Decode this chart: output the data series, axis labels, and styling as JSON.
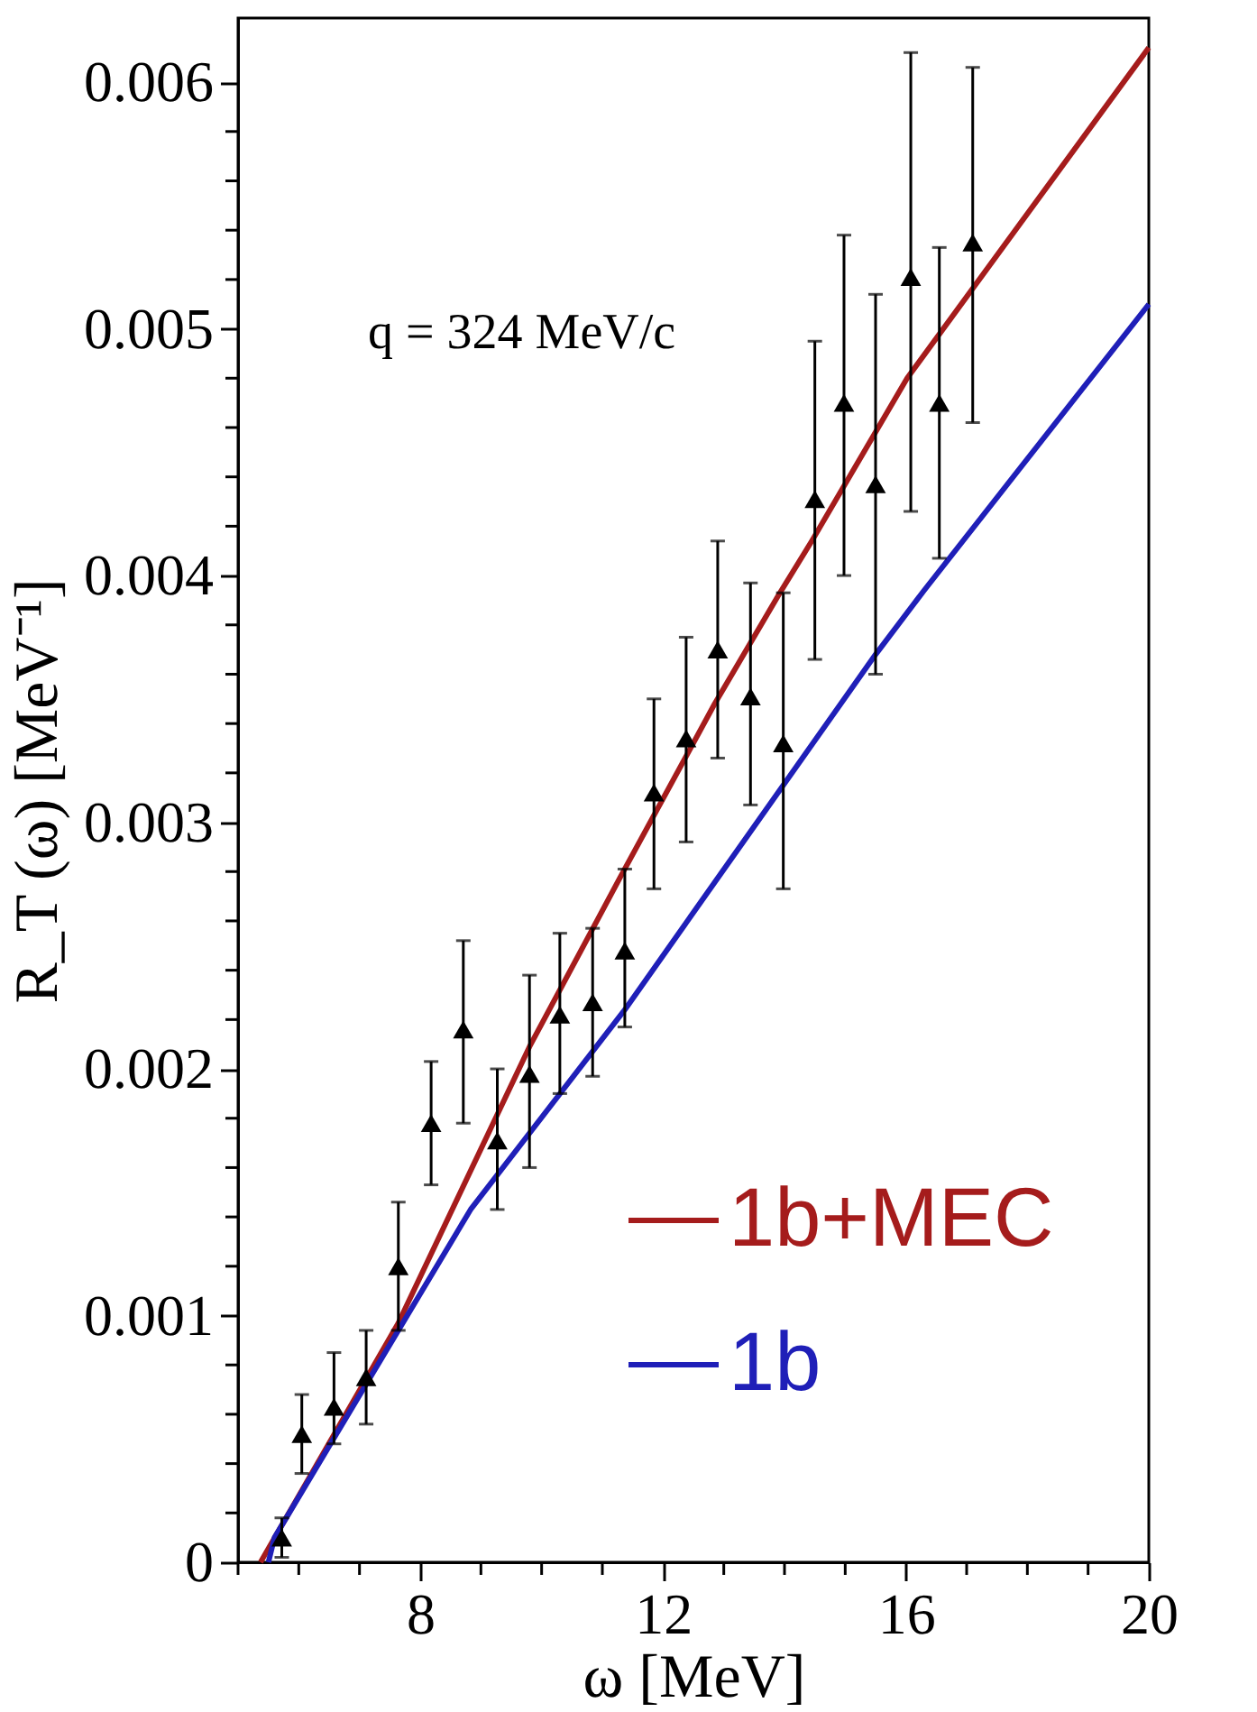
{
  "chart_data": {
    "type": "scatter",
    "xlabel": "ω  [MeV]",
    "ylabel": "R_T (ω) [MeV⁻¹]",
    "annotations": [
      "q = 324 MeV/c"
    ],
    "xlim": [
      5,
      20
    ],
    "ylim": [
      0,
      0.00626
    ],
    "xticks": [
      {
        "value": 5,
        "label": null
      },
      {
        "value": 6,
        "label": null
      },
      {
        "value": 7,
        "label": null
      },
      8,
      {
        "value": 9,
        "label": null
      },
      {
        "value": 10,
        "label": null
      },
      {
        "value": 11,
        "label": null
      },
      12,
      {
        "value": 13,
        "label": null
      },
      {
        "value": 14,
        "label": null
      },
      {
        "value": 15,
        "label": null
      },
      16,
      {
        "value": 17,
        "label": null
      },
      {
        "value": 18,
        "label": null
      },
      {
        "value": 19,
        "label": null
      },
      20
    ],
    "yticks": [
      0,
      {
        "value": 0.0002,
        "label": null
      },
      {
        "value": 0.0004,
        "label": null
      },
      {
        "value": 0.0006,
        "label": null
      },
      {
        "value": 0.0008,
        "label": null
      },
      0.001,
      {
        "value": 0.0012,
        "label": null
      },
      {
        "value": 0.0014,
        "label": null
      },
      {
        "value": 0.0016,
        "label": null
      },
      {
        "value": 0.0018,
        "label": null
      },
      0.002,
      {
        "value": 0.0022,
        "label": null
      },
      {
        "value": 0.0024,
        "label": null
      },
      {
        "value": 0.0026,
        "label": null
      },
      {
        "value": 0.0028,
        "label": null
      },
      0.003,
      {
        "value": 0.0032,
        "label": null
      },
      {
        "value": 0.0034,
        "label": null
      },
      {
        "value": 0.0036,
        "label": null
      },
      {
        "value": 0.0038,
        "label": null
      },
      0.004,
      {
        "value": 0.0042,
        "label": null
      },
      {
        "value": 0.0044,
        "label": null
      },
      {
        "value": 0.0046,
        "label": null
      },
      {
        "value": 0.0048,
        "label": null
      },
      0.005,
      {
        "value": 0.0052,
        "label": null
      },
      {
        "value": 0.0054,
        "label": null
      },
      {
        "value": 0.0056,
        "label": null
      },
      {
        "value": 0.0058,
        "label": null
      },
      0.006
    ],
    "grid": false,
    "legend": "bottom right",
    "series": [
      {
        "color": "#000000",
        "marker": "triangle",
        "x": [
          5.72,
          6.05,
          6.58,
          7.11,
          7.64,
          8.18,
          8.71,
          9.27,
          9.8,
          10.3,
          10.84,
          11.37,
          11.85,
          12.38,
          12.9,
          13.44,
          13.98,
          14.5,
          14.98,
          15.5,
          16.08,
          16.55,
          17.1
        ],
        "values": [
          0.0001,
          0.00052,
          0.00063,
          0.00075,
          0.0012,
          0.00178,
          0.00216,
          0.00171,
          0.00198,
          0.00222,
          0.00227,
          0.00248,
          0.00312,
          0.00334,
          0.0037,
          0.00351,
          0.00332,
          0.00431,
          0.0047,
          0.00437,
          0.00521,
          0.0047,
          0.00535
        ],
        "errors": [
          [
            2e-05,
            0.00018
          ],
          [
            0.00036,
            0.00068
          ],
          [
            0.00048,
            0.00085
          ],
          [
            0.00056,
            0.00094
          ],
          [
            0.00094,
            0.00146
          ],
          [
            0.00153,
            0.00203
          ],
          [
            0.00178,
            0.00252
          ],
          [
            0.00143,
            0.002
          ],
          [
            0.0016,
            0.00238
          ],
          [
            0.0019,
            0.00255
          ],
          [
            0.00197,
            0.00257
          ],
          [
            0.00217,
            0.00281
          ],
          [
            0.00273,
            0.0035
          ],
          [
            0.00292,
            0.00375
          ],
          [
            0.00326,
            0.00414
          ],
          [
            0.00307,
            0.00397
          ],
          [
            0.00273,
            0.00393
          ],
          [
            0.00366,
            0.00495
          ],
          [
            0.004,
            0.00538
          ],
          [
            0.0036,
            0.00514
          ],
          [
            0.00426,
            0.00612
          ],
          [
            0.00407,
            0.00533
          ],
          [
            0.00462,
            0.00606
          ]
        ]
      },
      {
        "type": "line",
        "name": "1b+MEC",
        "color": "#a51c1c",
        "line_style": "solid",
        "x": [
          5.37,
          7.64,
          9.8,
          11.28,
          12.85,
          13.9,
          14.45,
          16.02,
          20
        ],
        "values": [
          0,
          0.00097,
          0.00209,
          0.00277,
          0.00348,
          0.00392,
          0.00414,
          0.0048,
          0.00614
        ]
      },
      {
        "type": "line",
        "name": "1b",
        "color": "#1f1fb8",
        "line_style": "solid",
        "x": [
          5.5,
          5.6,
          8.83,
          11.37,
          15.5,
          16.3,
          20
        ],
        "values": [
          0,
          0.0001,
          0.00143,
          0.00224,
          0.00368,
          0.00394,
          0.0051
        ]
      }
    ]
  }
}
